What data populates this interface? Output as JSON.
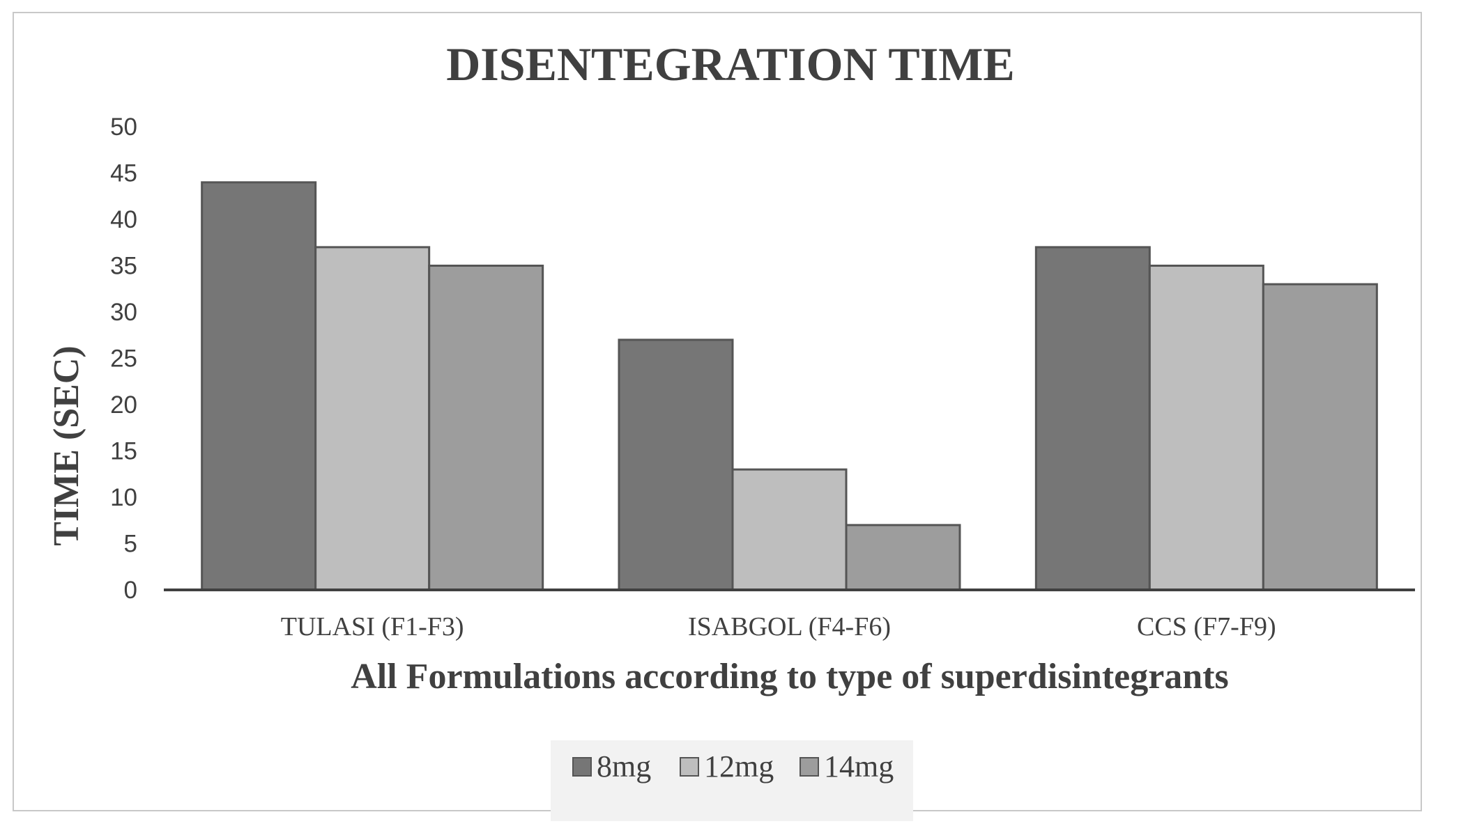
{
  "chart_data": {
    "type": "bar",
    "title": "DISENTEGRATION TIME",
    "xlabel": "All Formulations according to type of superdisintegrants",
    "ylabel": "TIME (SEC)",
    "categories": [
      "TULASI (F1-F3)",
      "ISABGOL (F4-F6)",
      "CCS (F7-F9)"
    ],
    "series": [
      {
        "name": "8mg",
        "values": [
          44,
          27,
          37
        ],
        "color": "#767676"
      },
      {
        "name": "12mg",
        "values": [
          37,
          13,
          35
        ],
        "color": "#bebebe"
      },
      {
        "name": "14mg",
        "values": [
          35,
          7,
          33
        ],
        "color": "#9d9d9d"
      }
    ],
    "ylim": [
      0,
      50
    ],
    "yticks": [
      0,
      5,
      10,
      15,
      20,
      25,
      30,
      35,
      40,
      45,
      50
    ],
    "grid": false,
    "legend": "bottom",
    "bar_stroke": "#555555",
    "axis_color": "#404040"
  }
}
